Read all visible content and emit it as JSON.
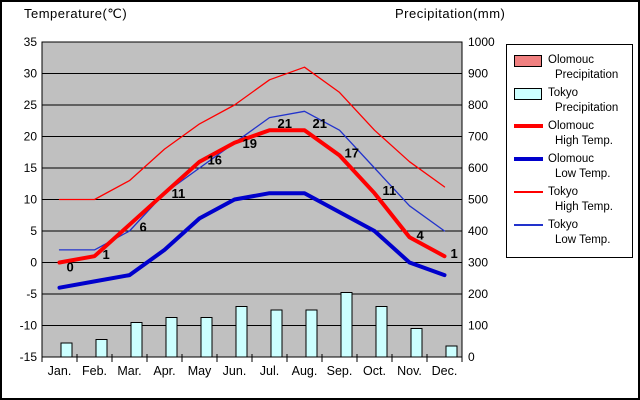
{
  "titles": {
    "left": "Temperature(℃)",
    "right": "Precipitation(mm)"
  },
  "legend": {
    "items": [
      {
        "key": "olomouc-precipitation",
        "swatch": "bar",
        "color": "#f08080",
        "line1": "Olomouc",
        "line2": "Precipitation"
      },
      {
        "key": "tokyo-precipitation",
        "swatch": "bar",
        "color": "#ccffff",
        "line1": "Tokyo",
        "line2": "Precipitation"
      },
      {
        "key": "olomouc-high-temp",
        "swatch": "line-thick",
        "color": "#ff0000",
        "line1": "Olomouc",
        "line2": "High Temp."
      },
      {
        "key": "olomouc-low-temp",
        "swatch": "line-thick",
        "color": "#0000cc",
        "line1": "Olomouc",
        "line2": "Low Temp."
      },
      {
        "key": "tokyo-high-temp",
        "swatch": "line-thin",
        "color": "#ff0000",
        "line1": "Tokyo",
        "line2": "High Temp."
      },
      {
        "key": "tokyo-low-temp",
        "swatch": "line-thin",
        "color": "#2233cc",
        "line1": "Tokyo",
        "line2": "Low Temp."
      }
    ]
  },
  "chart_data": {
    "type": "combo bar+line, dual axis climate chart",
    "categories": [
      "Jan.",
      "Feb.",
      "Mar.",
      "Apr.",
      "May",
      "Jun.",
      "Jul.",
      "Aug.",
      "Sep.",
      "Oct.",
      "Nov.",
      "Dec."
    ],
    "temp_axis": {
      "title": "Temperature(℃)",
      "min": -15,
      "max": 35,
      "step": 5,
      "ticks": [
        "35",
        "30",
        "25",
        "20",
        "15",
        "10",
        "5",
        "0",
        "-5",
        "-10",
        "-15"
      ]
    },
    "precip_axis": {
      "title": "Precipitation(mm)",
      "min": 0,
      "max": 1000,
      "step": 100,
      "ticks": [
        "1000",
        "900",
        "800",
        "700",
        "600",
        "500",
        "400",
        "300",
        "200",
        "100",
        "0"
      ]
    },
    "grid": "horizontal only",
    "legend_position": "outside right",
    "unlabeled_series_estimated_from_gridlines": true,
    "series": [
      {
        "key": "olomouc-precipitation",
        "name": "Olomouc Precipitation",
        "type": "bar",
        "axis": "precip",
        "color": "#f08080",
        "values": null,
        "note": "listed in legend but bars not visible in plot (hidden behind taller Tokyo bars)"
      },
      {
        "key": "tokyo-precipitation",
        "name": "Tokyo Precipitation",
        "type": "bar",
        "axis": "precip",
        "color": "#ccffff",
        "values": [
          45,
          55,
          110,
          125,
          125,
          160,
          150,
          150,
          205,
          160,
          90,
          35
        ]
      },
      {
        "key": "tokyo-high-temp",
        "name": "Tokyo High Temp.",
        "type": "line",
        "weight": "thin",
        "axis": "temp",
        "color": "#ff0000",
        "values": [
          10,
          10,
          13,
          18,
          22,
          25,
          29,
          31,
          27,
          21,
          16,
          12
        ]
      },
      {
        "key": "tokyo-low-temp",
        "name": "Tokyo Low Temp.",
        "type": "line",
        "weight": "thin",
        "axis": "temp",
        "color": "#2233cc",
        "values": [
          2,
          2,
          5,
          11,
          15,
          19,
          23,
          24,
          21,
          15,
          9,
          5
        ]
      },
      {
        "key": "olomouc-low-temp",
        "name": "Olomouc Low Temp.",
        "type": "line",
        "weight": "thick",
        "axis": "temp",
        "color": "#0000cc",
        "values": [
          -4,
          -3,
          -2,
          2,
          7,
          10,
          11,
          11,
          8,
          5,
          0,
          -2
        ]
      },
      {
        "key": "olomouc-high-temp",
        "name": "Olomouc High Temp.",
        "type": "line",
        "weight": "thick",
        "axis": "temp",
        "color": "#ff0000",
        "values": [
          0,
          1,
          6,
          11,
          16,
          19,
          21,
          21,
          17,
          11,
          4,
          1
        ],
        "point_labels": [
          "0",
          "1",
          "6",
          "11",
          "16",
          "19",
          "21",
          "21",
          "17",
          "11",
          "4",
          "1"
        ]
      }
    ]
  },
  "colors": {
    "plot_bg": "#c0c0c0",
    "grid": "#000000",
    "page_bg": "#ffffff",
    "border": "#000000"
  }
}
